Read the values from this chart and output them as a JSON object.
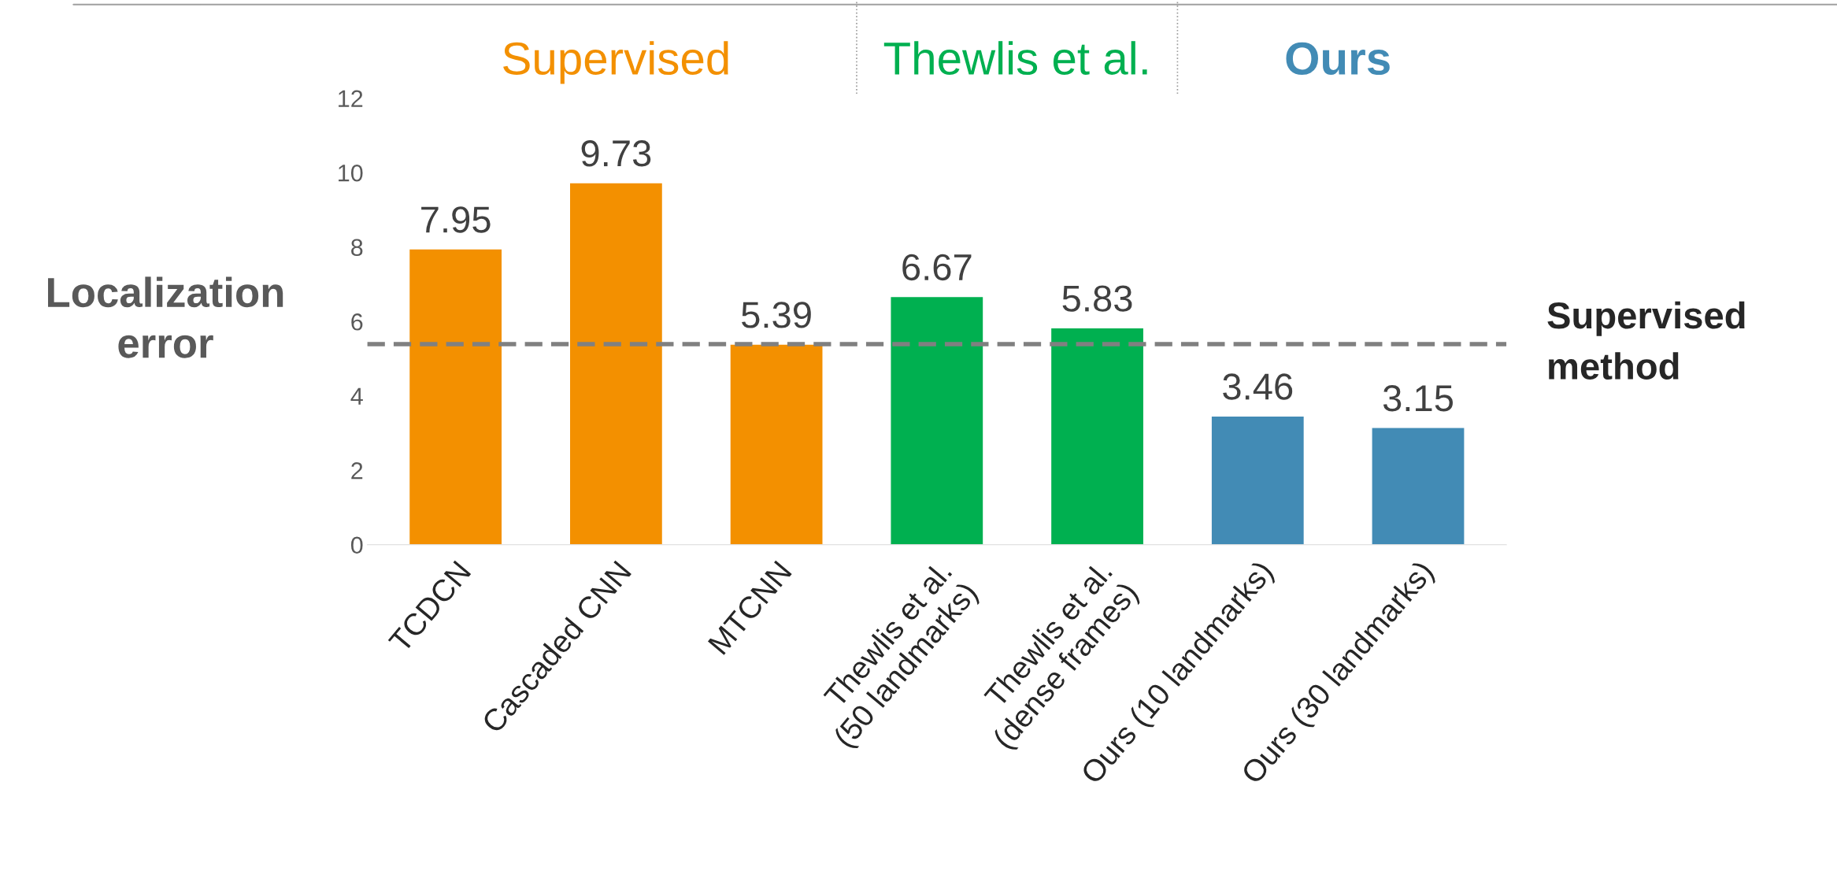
{
  "chart_data": {
    "type": "bar",
    "ylabel": "Localization error",
    "categories": [
      "TCDCN",
      "Cascaded CNN",
      "MTCNN",
      "Thewlis et al.\n(50 landmarks)",
      "Thewlis et al.\n(dense frames)",
      "Ours (10 landmarks)",
      "Ours (30 landmarks)"
    ],
    "values": [
      7.95,
      9.73,
      5.39,
      6.67,
      5.83,
      3.46,
      3.15
    ],
    "colors": [
      "#f39000",
      "#f39000",
      "#f39000",
      "#00b050",
      "#00b050",
      "#428bb5",
      "#428bb5"
    ],
    "data_labels": true,
    "ylim": [
      0,
      12
    ],
    "yticks": [
      0,
      2,
      4,
      6,
      8,
      10,
      12
    ],
    "grid": false,
    "legend": false,
    "ref_lines": [
      {
        "axis": "y",
        "value": 5.39,
        "label": "Supervised\nmethod",
        "color": "#808080",
        "line_style": "dashed"
      }
    ],
    "annotations": [
      "Supervised",
      "Thewlis et al.",
      "Ours"
    ]
  }
}
